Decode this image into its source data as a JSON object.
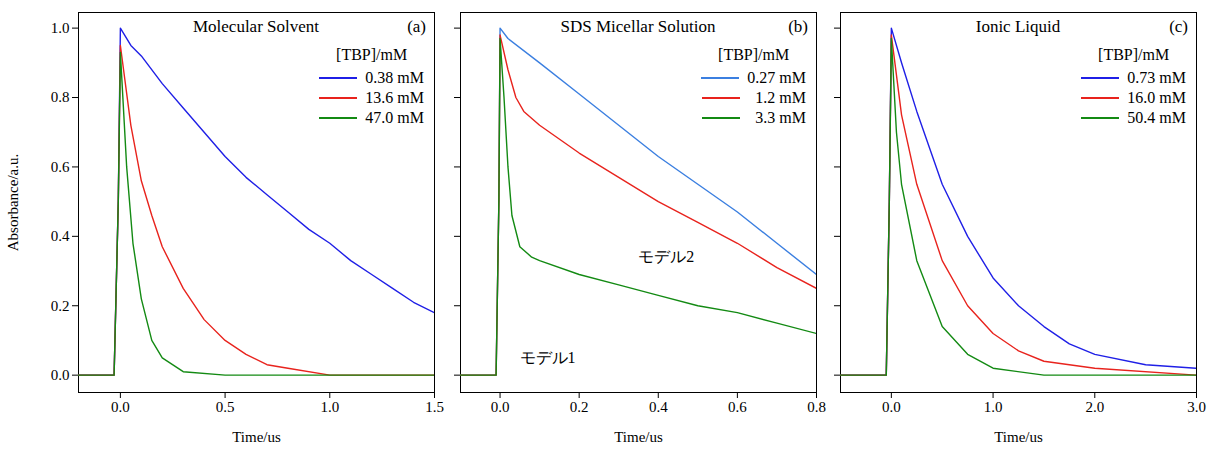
{
  "chart_data": [
    {
      "type": "line",
      "title": "Molecular Solvent",
      "panel_label": "(a)",
      "legend_title": "[TBP]/mM",
      "x_label": "Time/us",
      "y_label": "Absorbance/a.u.",
      "xlim": [
        -0.2,
        1.5
      ],
      "xticks": [
        {
          "value": 0,
          "label": "0.0"
        },
        0.5,
        {
          "value": 1,
          "label": "1.0"
        },
        1.5
      ],
      "ylim": [
        -0.05,
        1.045
      ],
      "yticks": [
        {
          "value": 0,
          "label": "0.0"
        },
        0.2,
        0.4,
        0.6,
        0.8,
        {
          "value": 1,
          "label": "1.0"
        }
      ],
      "legend": "top-right",
      "tick_labels": true,
      "series": [
        {
          "name": "0.38 mM",
          "color": "#1f1fe6",
          "x": [
            -0.2,
            -0.03,
            -0.01,
            0,
            0.05,
            0.1,
            0.2,
            0.3,
            0.4,
            0.5,
            0.6,
            0.7,
            0.8,
            0.9,
            1.0,
            1.1,
            1.2,
            1.3,
            1.4,
            1.5
          ],
          "values": [
            0,
            0,
            0.5,
            1.0,
            0.95,
            0.92,
            0.84,
            0.77,
            0.7,
            0.63,
            0.57,
            0.52,
            0.47,
            0.42,
            0.38,
            0.33,
            0.29,
            0.25,
            0.21,
            0.18
          ]
        },
        {
          "name": "13.6 mM",
          "color": "#e8231d",
          "x": [
            -0.2,
            -0.03,
            -0.01,
            0,
            0.05,
            0.1,
            0.15,
            0.2,
            0.3,
            0.4,
            0.5,
            0.6,
            0.7,
            0.8,
            1.0,
            1.5
          ],
          "values": [
            0,
            0,
            0.5,
            0.95,
            0.72,
            0.56,
            0.46,
            0.37,
            0.25,
            0.16,
            0.1,
            0.06,
            0.03,
            0.02,
            0,
            0
          ]
        },
        {
          "name": "47.0 mM",
          "color": "#138a13",
          "x": [
            -0.2,
            -0.03,
            -0.01,
            0,
            0.03,
            0.06,
            0.1,
            0.15,
            0.2,
            0.3,
            0.5,
            1.5
          ],
          "values": [
            0,
            0,
            0.5,
            0.93,
            0.6,
            0.38,
            0.22,
            0.1,
            0.05,
            0.01,
            0,
            0
          ]
        }
      ]
    },
    {
      "type": "line",
      "title": "SDS Micellar Solution",
      "panel_label": "(b)",
      "legend_title": "[TBP]/mM",
      "x_label": "Time/us",
      "xlim": [
        -0.1,
        0.8
      ],
      "xticks": [
        {
          "value": 0,
          "label": "0.0"
        },
        0.2,
        0.4,
        0.6,
        0.8
      ],
      "ylim": [
        -0.05,
        1.045
      ],
      "yticks": [
        0,
        0.2,
        0.4,
        0.6,
        0.8,
        1
      ],
      "legend": "top-right",
      "tick_labels": "x",
      "annotations": [
        {
          "text": "モデル1",
          "x": 0.12,
          "y": 0.05
        },
        {
          "text": "モデル2",
          "x": 0.42,
          "y": 0.34
        }
      ],
      "series": [
        {
          "name": "0.27 mM",
          "color": "#3b7fe0",
          "x": [
            -0.1,
            -0.01,
            -0.003,
            0,
            0.02,
            0.1,
            0.2,
            0.3,
            0.4,
            0.5,
            0.6,
            0.7,
            0.8
          ],
          "values": [
            0,
            0,
            0.5,
            1.0,
            0.97,
            0.9,
            0.81,
            0.72,
            0.63,
            0.55,
            0.47,
            0.38,
            0.29
          ]
        },
        {
          "name": "1.2 mM",
          "color": "#e8231d",
          "x": [
            -0.1,
            -0.01,
            -0.003,
            0,
            0.02,
            0.04,
            0.06,
            0.1,
            0.2,
            0.3,
            0.4,
            0.5,
            0.6,
            0.7,
            0.8
          ],
          "values": [
            0,
            0,
            0.5,
            0.98,
            0.88,
            0.8,
            0.76,
            0.72,
            0.64,
            0.57,
            0.5,
            0.44,
            0.38,
            0.31,
            0.25
          ]
        },
        {
          "name": "3.3 mM",
          "color": "#138a13",
          "x": [
            -0.1,
            -0.01,
            -0.003,
            0,
            0.01,
            0.02,
            0.03,
            0.05,
            0.08,
            0.1,
            0.2,
            0.3,
            0.4,
            0.5,
            0.6,
            0.7,
            0.8
          ],
          "values": [
            0,
            0,
            0.5,
            0.97,
            0.8,
            0.6,
            0.46,
            0.37,
            0.34,
            0.33,
            0.29,
            0.26,
            0.23,
            0.2,
            0.18,
            0.15,
            0.12
          ]
        }
      ]
    },
    {
      "type": "line",
      "title": "Ionic Liquid",
      "panel_label": "(c)",
      "legend_title": "[TBP]/mM",
      "x_label": "Time/us",
      "xlim": [
        -0.5,
        3.0
      ],
      "xticks": [
        {
          "value": 0,
          "label": "0.0"
        },
        {
          "value": 1,
          "label": "1.0"
        },
        {
          "value": 2,
          "label": "2.0"
        },
        {
          "value": 3,
          "label": "3.0"
        }
      ],
      "ylim": [
        -0.05,
        1.045
      ],
      "yticks": [
        0,
        0.2,
        0.4,
        0.6,
        0.8,
        1
      ],
      "legend": "top-right",
      "tick_labels": "x",
      "series": [
        {
          "name": "0.73 mM",
          "color": "#1f1fe6",
          "x": [
            -0.5,
            -0.05,
            -0.02,
            0,
            0.1,
            0.25,
            0.5,
            0.75,
            1.0,
            1.25,
            1.5,
            1.75,
            2.0,
            2.5,
            3.0
          ],
          "values": [
            0,
            0,
            0.5,
            1.0,
            0.9,
            0.76,
            0.55,
            0.4,
            0.28,
            0.2,
            0.14,
            0.09,
            0.06,
            0.03,
            0.02
          ]
        },
        {
          "name": "16.0 mM",
          "color": "#e8231d",
          "x": [
            -0.5,
            -0.05,
            -0.02,
            0,
            0.1,
            0.25,
            0.5,
            0.75,
            1.0,
            1.25,
            1.5,
            2.0,
            3.0
          ],
          "values": [
            0,
            0,
            0.5,
            0.98,
            0.75,
            0.55,
            0.33,
            0.2,
            0.12,
            0.07,
            0.04,
            0.02,
            0
          ]
        },
        {
          "name": "50.4 mM",
          "color": "#138a13",
          "x": [
            -0.5,
            -0.05,
            -0.02,
            0,
            0.05,
            0.1,
            0.25,
            0.5,
            0.75,
            1.0,
            1.5,
            3.0
          ],
          "values": [
            0,
            0,
            0.5,
            0.97,
            0.7,
            0.55,
            0.33,
            0.14,
            0.06,
            0.02,
            0,
            0
          ]
        }
      ]
    }
  ]
}
